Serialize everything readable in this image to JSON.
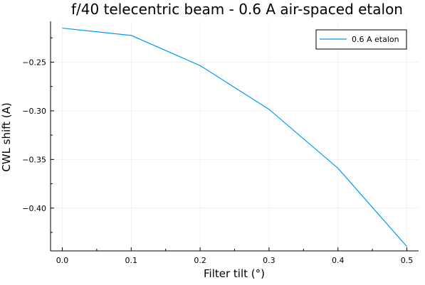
{
  "chart_data": {
    "type": "line",
    "title": "f/40 telecentric beam - 0.6 A air-spaced etalon",
    "xlabel": "Filter tilt (°)",
    "ylabel": "CWL shift (A)",
    "xlim": [
      -0.017,
      0.517
    ],
    "ylim": [
      -0.444,
      -0.208
    ],
    "xticks": [
      0.0,
      0.1,
      0.2,
      0.3,
      0.4,
      0.5
    ],
    "xtick_labels": [
      "0.0",
      "0.1",
      "0.2",
      "0.3",
      "0.4",
      "0.5"
    ],
    "yticks": [
      -0.25,
      -0.3,
      -0.35,
      -0.4
    ],
    "ytick_labels": [
      "−0.25",
      "−0.30",
      "−0.35",
      "−0.40"
    ],
    "grid": true,
    "legend_position": "top-right",
    "series": [
      {
        "name": "0.6 A etalon",
        "color": "#009af9",
        "x": [
          0.0,
          0.1,
          0.2,
          0.3,
          0.4,
          0.5
        ],
        "y": [
          -0.215,
          -0.2225,
          -0.2535,
          -0.2985,
          -0.359,
          -0.4395
        ]
      }
    ]
  }
}
